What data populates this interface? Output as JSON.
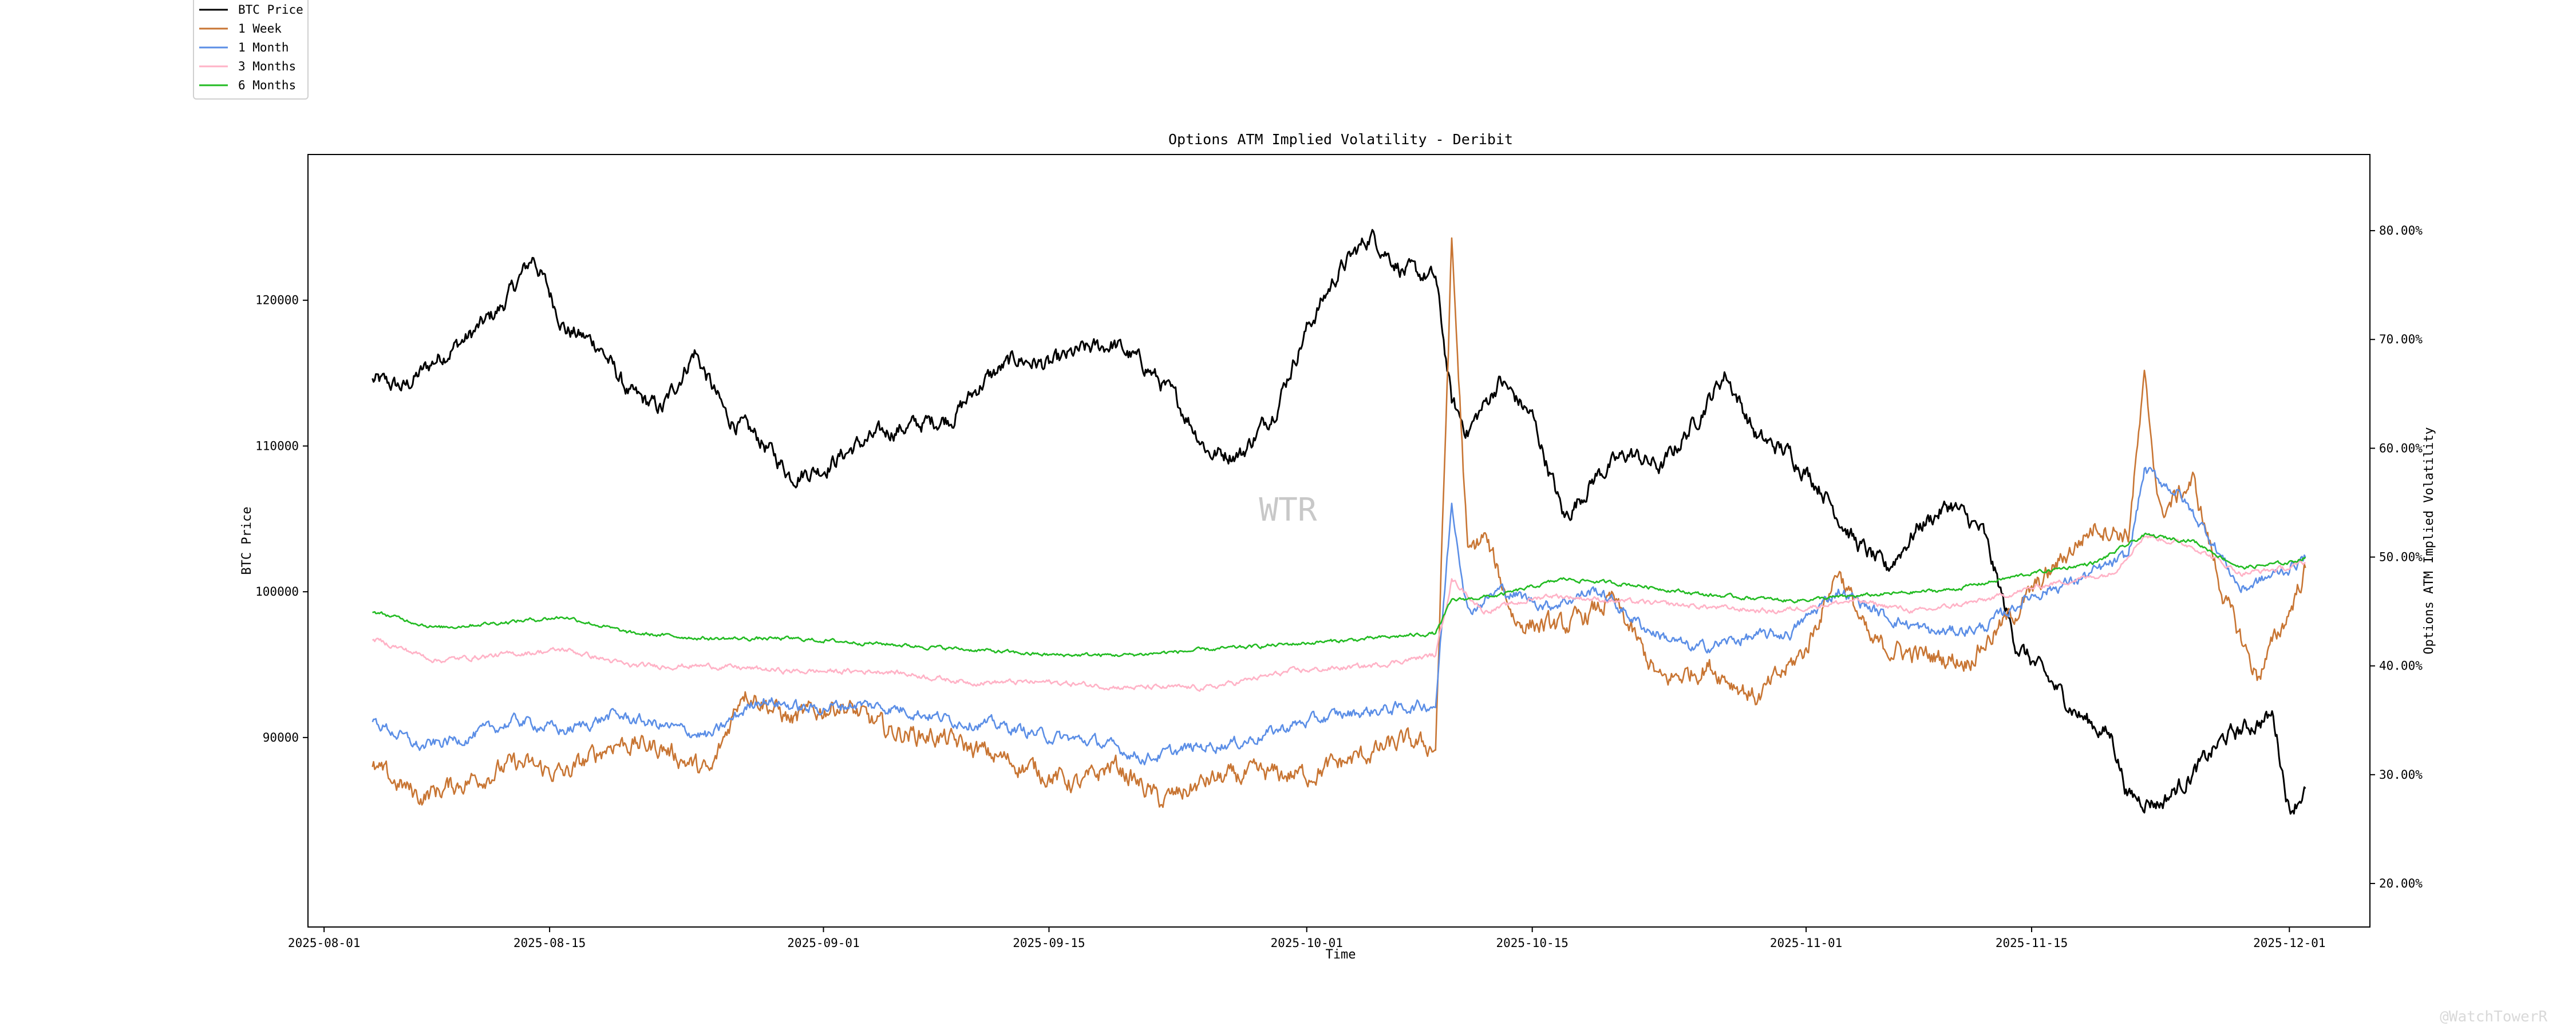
{
  "chart_data": {
    "type": "line",
    "title": "Options ATM Implied Volatility - Deribit",
    "xlabel": "Time",
    "ylabel_left": "BTC Price",
    "ylabel_right": "Options ATM Implied Volatility",
    "x_range": [
      "2025-07-31",
      "2025-12-06"
    ],
    "ylim_left": [
      77000,
      130000
    ],
    "ylim_right": [
      16.0,
      87.0
    ],
    "x_ticks": [
      "2025-08-01",
      "2025-08-15",
      "2025-09-01",
      "2025-09-15",
      "2025-10-01",
      "2025-10-15",
      "2025-11-01",
      "2025-11-15",
      "2025-12-01"
    ],
    "y_ticks_left": [
      90000,
      100000,
      110000,
      120000
    ],
    "y_ticks_right": [
      "20.00%",
      "30.00%",
      "40.00%",
      "50.00%",
      "60.00%",
      "70.00%",
      "80.00%"
    ],
    "y_ticks_right_values": [
      20,
      30,
      40,
      50,
      60,
      70,
      80
    ],
    "legend_position": "top-left (outside plot)",
    "grid": false,
    "watermark": "WTR",
    "series": [
      {
        "name": "BTC Price",
        "axis": "left",
        "color": "#000000",
        "x": [
          "2025-08-04",
          "2025-08-06",
          "2025-08-08",
          "2025-08-10",
          "2025-08-12",
          "2025-08-14",
          "2025-08-16",
          "2025-08-18",
          "2025-08-20",
          "2025-08-22",
          "2025-08-24",
          "2025-08-26",
          "2025-08-28",
          "2025-08-30",
          "2025-09-01",
          "2025-09-03",
          "2025-09-05",
          "2025-09-07",
          "2025-09-09",
          "2025-09-11",
          "2025-09-13",
          "2025-09-15",
          "2025-09-17",
          "2025-09-19",
          "2025-09-21",
          "2025-09-23",
          "2025-09-25",
          "2025-09-27",
          "2025-09-29",
          "2025-10-01",
          "2025-10-03",
          "2025-10-05",
          "2025-10-07",
          "2025-10-09",
          "2025-10-10",
          "2025-10-11",
          "2025-10-13",
          "2025-10-15",
          "2025-10-17",
          "2025-10-19",
          "2025-10-21",
          "2025-10-23",
          "2025-10-25",
          "2025-10-27",
          "2025-10-29",
          "2025-10-31",
          "2025-11-02",
          "2025-11-04",
          "2025-11-06",
          "2025-11-08",
          "2025-11-10",
          "2025-11-12",
          "2025-11-14",
          "2025-11-16",
          "2025-11-18",
          "2025-11-20",
          "2025-11-21",
          "2025-11-23",
          "2025-11-25",
          "2025-11-27",
          "2025-11-29",
          "2025-11-30",
          "2025-12-01",
          "2025-12-02"
        ],
        "values": [
          114500,
          114000,
          116000,
          117500,
          119500,
          123000,
          118000,
          117000,
          113500,
          112500,
          116500,
          112000,
          110500,
          108000,
          108500,
          110000,
          111000,
          111500,
          112000,
          114500,
          116000,
          115500,
          116500,
          117000,
          115500,
          113000,
          109500,
          109500,
          112500,
          118000,
          122000,
          124500,
          122000,
          121500,
          113000,
          111000,
          114500,
          112000,
          105000,
          108000,
          109500,
          108500,
          111500,
          115000,
          110500,
          109500,
          107000,
          103500,
          101500,
          104500,
          106000,
          104000,
          96500,
          94000,
          91500,
          90000,
          86000,
          85500,
          87500,
          90000,
          91000,
          91500,
          85000,
          86500
        ]
      },
      {
        "name": "1 Week",
        "axis": "right",
        "color": "#c87533",
        "x": [
          "2025-08-04",
          "2025-08-07",
          "2025-08-10",
          "2025-08-13",
          "2025-08-16",
          "2025-08-19",
          "2025-08-22",
          "2025-08-25",
          "2025-08-27",
          "2025-08-30",
          "2025-09-02",
          "2025-09-05",
          "2025-09-08",
          "2025-09-11",
          "2025-09-14",
          "2025-09-17",
          "2025-09-19",
          "2025-09-22",
          "2025-09-25",
          "2025-09-28",
          "2025-10-01",
          "2025-10-04",
          "2025-10-07",
          "2025-10-09",
          "2025-10-10",
          "2025-10-11",
          "2025-10-12",
          "2025-10-14",
          "2025-10-17",
          "2025-10-20",
          "2025-10-23",
          "2025-10-26",
          "2025-10-29",
          "2025-11-01",
          "2025-11-03",
          "2025-11-05",
          "2025-11-08",
          "2025-11-11",
          "2025-11-14",
          "2025-11-17",
          "2025-11-19",
          "2025-11-21",
          "2025-11-22",
          "2025-11-23",
          "2025-11-25",
          "2025-11-27",
          "2025-11-29",
          "2025-12-01",
          "2025-12-02"
        ],
        "values": [
          30.5,
          28.0,
          29.5,
          31.0,
          30.0,
          33.0,
          32.5,
          30.0,
          38.0,
          35.0,
          36.5,
          34.0,
          33.5,
          32.0,
          30.5,
          29.0,
          31.0,
          27.5,
          29.5,
          30.0,
          30.0,
          31.5,
          33.0,
          32.5,
          79.0,
          50.0,
          52.0,
          44.0,
          43.5,
          46.0,
          38.5,
          40.0,
          37.0,
          41.5,
          49.0,
          42.0,
          41.0,
          40.5,
          45.0,
          50.0,
          53.0,
          52.0,
          66.0,
          54.0,
          57.0,
          46.0,
          39.0,
          45.0,
          49.0
        ]
      },
      {
        "name": "1 Month",
        "axis": "right",
        "color": "#5b8ee6",
        "x": [
          "2025-08-04",
          "2025-08-07",
          "2025-08-10",
          "2025-08-13",
          "2025-08-16",
          "2025-08-19",
          "2025-08-22",
          "2025-08-25",
          "2025-08-28",
          "2025-08-31",
          "2025-09-03",
          "2025-09-06",
          "2025-09-09",
          "2025-09-12",
          "2025-09-15",
          "2025-09-18",
          "2025-09-21",
          "2025-09-24",
          "2025-09-27",
          "2025-09-30",
          "2025-10-03",
          "2025-10-06",
          "2025-10-09",
          "2025-10-10",
          "2025-10-11",
          "2025-10-13",
          "2025-10-16",
          "2025-10-19",
          "2025-10-22",
          "2025-10-25",
          "2025-10-28",
          "2025-10-31",
          "2025-11-03",
          "2025-11-06",
          "2025-11-09",
          "2025-11-12",
          "2025-11-15",
          "2025-11-18",
          "2025-11-21",
          "2025-11-22",
          "2025-11-24",
          "2025-11-26",
          "2025-11-28",
          "2025-12-01",
          "2025-12-02"
        ],
        "values": [
          35.0,
          32.5,
          33.5,
          35.0,
          34.0,
          35.5,
          34.5,
          33.5,
          37.0,
          36.0,
          36.5,
          36.0,
          35.0,
          34.5,
          33.5,
          33.0,
          31.5,
          32.5,
          33.0,
          34.5,
          35.5,
          36.0,
          36.5,
          55.0,
          45.0,
          47.0,
          45.5,
          47.0,
          43.5,
          41.5,
          42.5,
          43.0,
          47.0,
          44.5,
          43.0,
          43.5,
          46.5,
          48.0,
          50.0,
          58.0,
          56.0,
          52.0,
          47.0,
          49.0,
          50.0
        ]
      },
      {
        "name": "3 Months",
        "axis": "right",
        "color": "#ffb2c6",
        "x": [
          "2025-08-04",
          "2025-08-08",
          "2025-08-12",
          "2025-08-16",
          "2025-08-20",
          "2025-08-25",
          "2025-08-30",
          "2025-09-05",
          "2025-09-10",
          "2025-09-15",
          "2025-09-20",
          "2025-09-25",
          "2025-09-30",
          "2025-10-05",
          "2025-10-09",
          "2025-10-10",
          "2025-10-12",
          "2025-10-16",
          "2025-10-20",
          "2025-10-25",
          "2025-10-30",
          "2025-11-04",
          "2025-11-08",
          "2025-11-12",
          "2025-11-16",
          "2025-11-20",
          "2025-11-22",
          "2025-11-25",
          "2025-11-28",
          "2025-12-01",
          "2025-12-02"
        ],
        "values": [
          42.5,
          40.5,
          41.0,
          41.5,
          40.0,
          40.0,
          39.5,
          39.5,
          38.5,
          38.5,
          38.0,
          38.0,
          39.5,
          40.0,
          41.0,
          48.0,
          45.0,
          46.5,
          46.0,
          45.5,
          45.0,
          46.0,
          45.0,
          46.0,
          47.5,
          48.5,
          52.0,
          51.0,
          48.5,
          49.0,
          49.5
        ]
      },
      {
        "name": "6 Months",
        "axis": "right",
        "color": "#22bb22",
        "x": [
          "2025-08-04",
          "2025-08-08",
          "2025-08-12",
          "2025-08-16",
          "2025-08-20",
          "2025-08-25",
          "2025-08-30",
          "2025-09-05",
          "2025-09-10",
          "2025-09-15",
          "2025-09-20",
          "2025-09-25",
          "2025-09-30",
          "2025-10-05",
          "2025-10-09",
          "2025-10-10",
          "2025-10-13",
          "2025-10-17",
          "2025-10-21",
          "2025-10-26",
          "2025-10-31",
          "2025-11-05",
          "2025-11-10",
          "2025-11-15",
          "2025-11-19",
          "2025-11-22",
          "2025-11-25",
          "2025-11-28",
          "2025-12-01",
          "2025-12-02"
        ],
        "values": [
          45.0,
          43.5,
          44.0,
          44.5,
          43.0,
          42.5,
          42.5,
          42.0,
          41.5,
          41.0,
          41.0,
          41.5,
          42.0,
          42.5,
          43.0,
          46.0,
          46.5,
          48.0,
          47.5,
          46.5,
          46.0,
          46.5,
          47.0,
          48.5,
          49.5,
          52.0,
          51.5,
          49.0,
          49.5,
          50.0
        ]
      }
    ]
  },
  "footer": {
    "brand": "@WatchTowerR"
  }
}
